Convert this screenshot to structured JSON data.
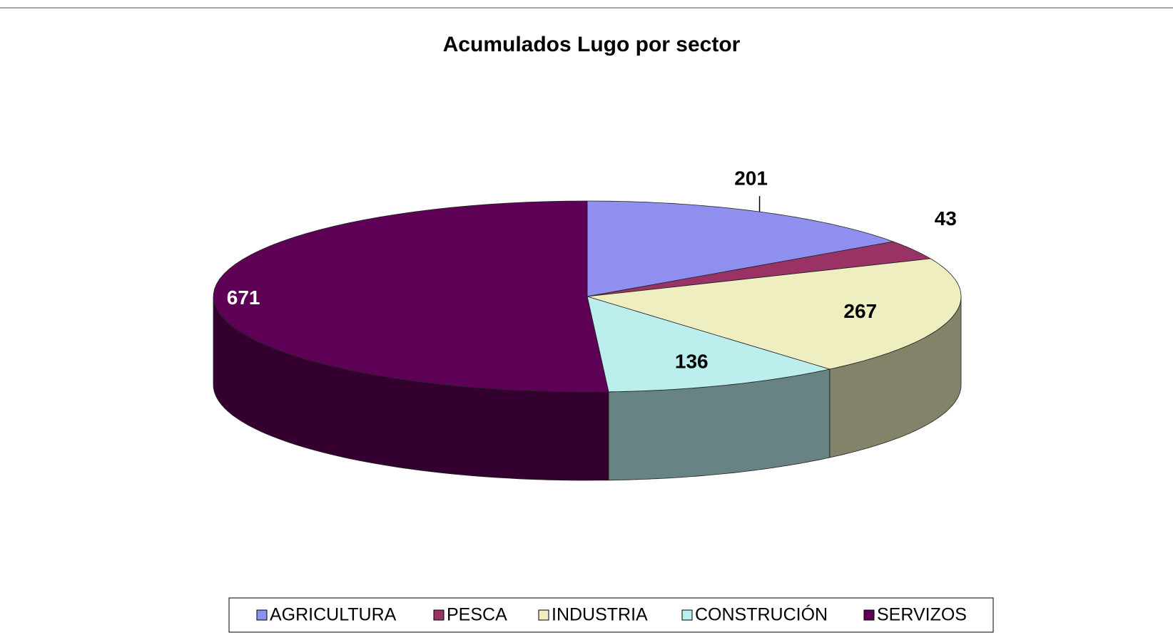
{
  "chart_data": {
    "type": "pie3d",
    "title": "Acumulados Lugo por sector",
    "categories": [
      "AGRICULTURA",
      "PESCA",
      "INDUSTRIA",
      "CONSTRUCIÓN",
      "SERVIZOS"
    ],
    "values": [
      201,
      43,
      267,
      136,
      671
    ],
    "colors": [
      "#8f8fef",
      "#993366",
      "#eeeec0",
      "#bdeeee",
      "#5e0055"
    ],
    "legend": "bottom"
  }
}
